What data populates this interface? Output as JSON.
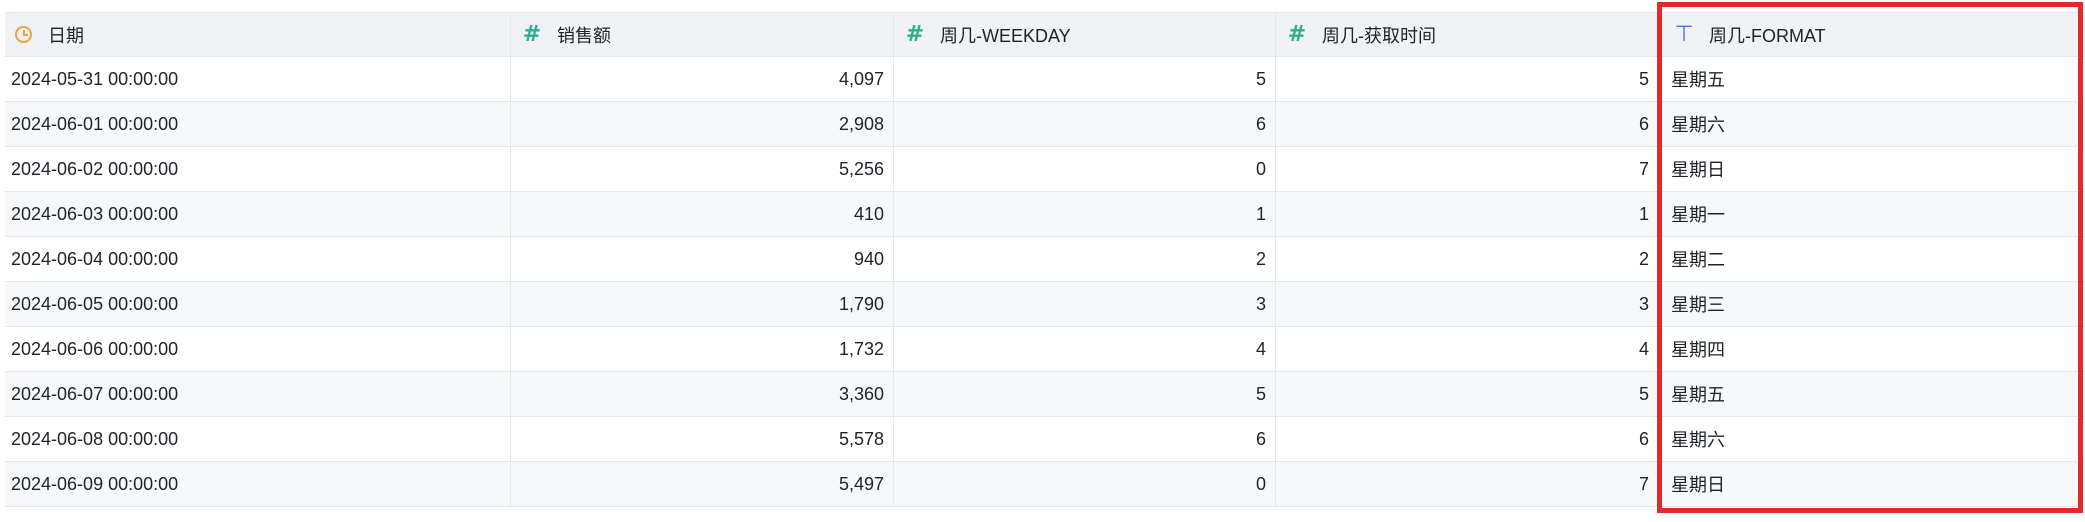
{
  "table": {
    "columns": [
      {
        "label": "日期",
        "type_icon": "clock-icon"
      },
      {
        "label": "销售额",
        "type_icon": "hash-icon"
      },
      {
        "label": "周几-WEEKDAY",
        "type_icon": "hash-icon"
      },
      {
        "label": "周几-获取时间",
        "type_icon": "hash-icon"
      },
      {
        "label": "周几-FORMAT",
        "type_icon": "text-type-icon"
      }
    ],
    "rows": [
      [
        "2024-05-31 00:00:00",
        "4,097",
        "5",
        "5",
        "星期五"
      ],
      [
        "2024-06-01 00:00:00",
        "2,908",
        "6",
        "6",
        "星期六"
      ],
      [
        "2024-06-02 00:00:00",
        "5,256",
        "0",
        "7",
        "星期日"
      ],
      [
        "2024-06-03 00:00:00",
        "410",
        "1",
        "1",
        "星期一"
      ],
      [
        "2024-06-04 00:00:00",
        "940",
        "2",
        "2",
        "星期二"
      ],
      [
        "2024-06-05 00:00:00",
        "1,790",
        "3",
        "3",
        "星期三"
      ],
      [
        "2024-06-06 00:00:00",
        "1,732",
        "4",
        "4",
        "星期四"
      ],
      [
        "2024-06-07 00:00:00",
        "3,360",
        "5",
        "5",
        "星期五"
      ],
      [
        "2024-06-08 00:00:00",
        "5,578",
        "6",
        "6",
        "星期六"
      ],
      [
        "2024-06-09 00:00:00",
        "5,497",
        "0",
        "7",
        "星期日"
      ]
    ]
  },
  "highlight": {
    "column": "周几-FORMAT",
    "color": "#e12b2b"
  },
  "colors": {
    "date_icon": "#f0a33a",
    "number_icon": "#2fae94",
    "text_icon": "#4a72d9",
    "header_bg": "#f0f2f5",
    "alt_row_bg": "#f7f8fa"
  }
}
